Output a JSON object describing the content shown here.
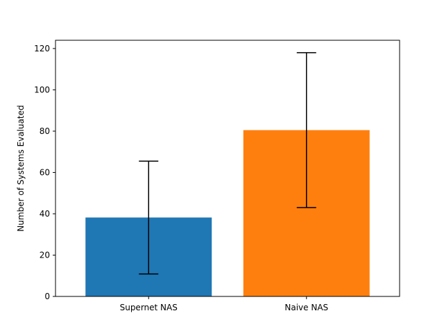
{
  "chart_data": {
    "type": "bar",
    "title": "",
    "xlabel": "",
    "ylabel": "Number of Systems Evaluated",
    "categories": [
      "Supernet NAS",
      "Naive NAS"
    ],
    "values": [
      38.2,
      80.5
    ],
    "error": [
      27.3,
      37.5
    ],
    "colors": [
      "#1f77b4",
      "#ff7f0e"
    ],
    "ylim": [
      0,
      124
    ],
    "yticks": [
      0,
      20,
      40,
      60,
      80,
      100,
      120
    ],
    "grid": false,
    "legend": "none"
  }
}
